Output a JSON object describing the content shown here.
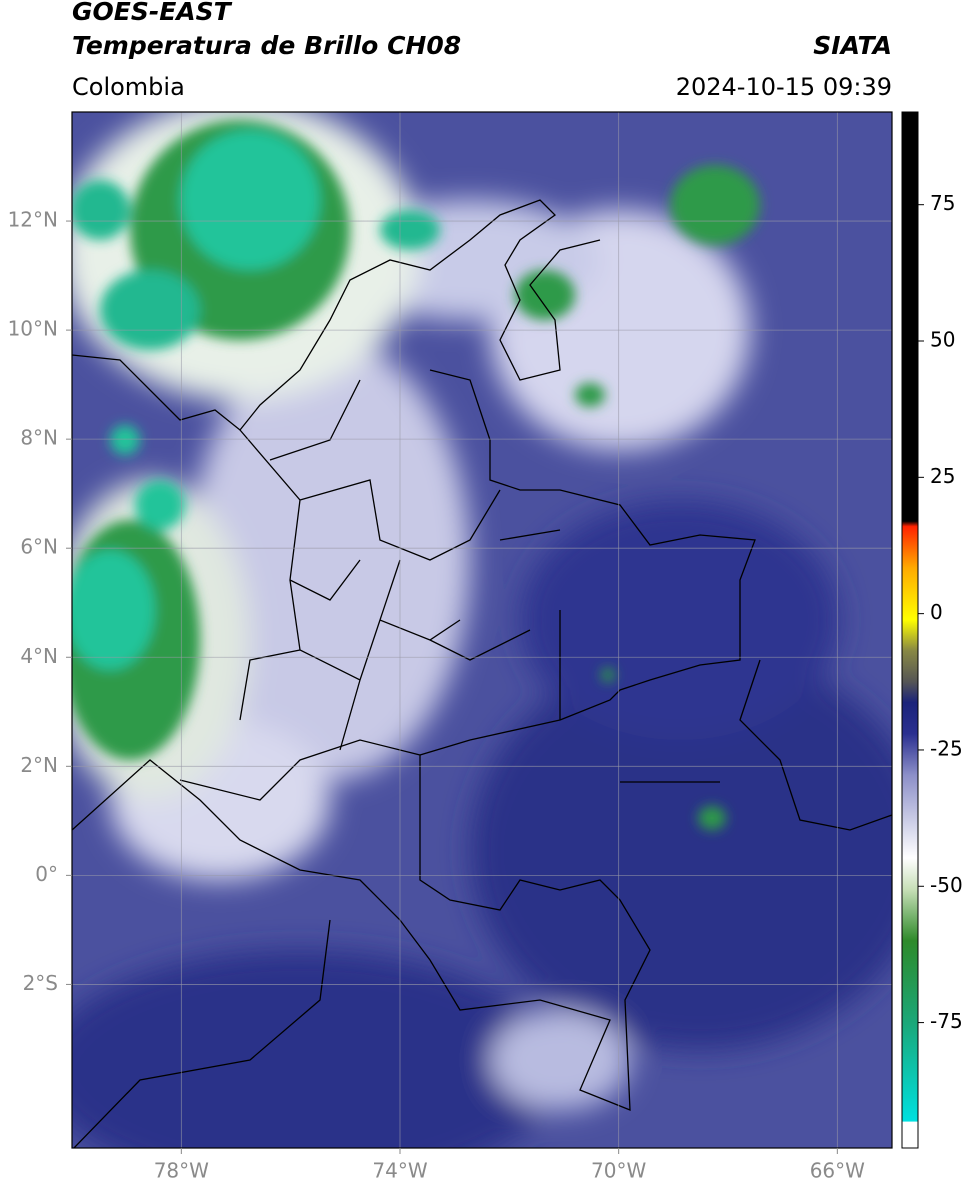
{
  "header": {
    "satellite": "GOES-EAST",
    "product": "Temperatura de Brillo CH08",
    "agency": "SIATA",
    "region": "Colombia",
    "datetime": "2024-10-15 09:39"
  },
  "map": {
    "xlim": [
      -80,
      -65
    ],
    "ylim": [
      -5,
      14
    ],
    "xticks": [
      {
        "value": -78,
        "label": "78°W"
      },
      {
        "value": -74,
        "label": "74°W"
      },
      {
        "value": -70,
        "label": "70°W"
      },
      {
        "value": -66,
        "label": "66°W"
      }
    ],
    "yticks": [
      {
        "value": 12,
        "label": "12°N"
      },
      {
        "value": 10,
        "label": "10°N"
      },
      {
        "value": 8,
        "label": "8°N"
      },
      {
        "value": 6,
        "label": "6°N"
      },
      {
        "value": 4,
        "label": "4°N"
      },
      {
        "value": 2,
        "label": "2°N"
      },
      {
        "value": 0,
        "label": "0°"
      },
      {
        "value": -2,
        "label": "2°S"
      }
    ]
  },
  "colorbar": {
    "lim": [
      -98,
      92
    ],
    "ticks": [
      75,
      50,
      25,
      0,
      -25,
      -50,
      -75
    ]
  }
}
